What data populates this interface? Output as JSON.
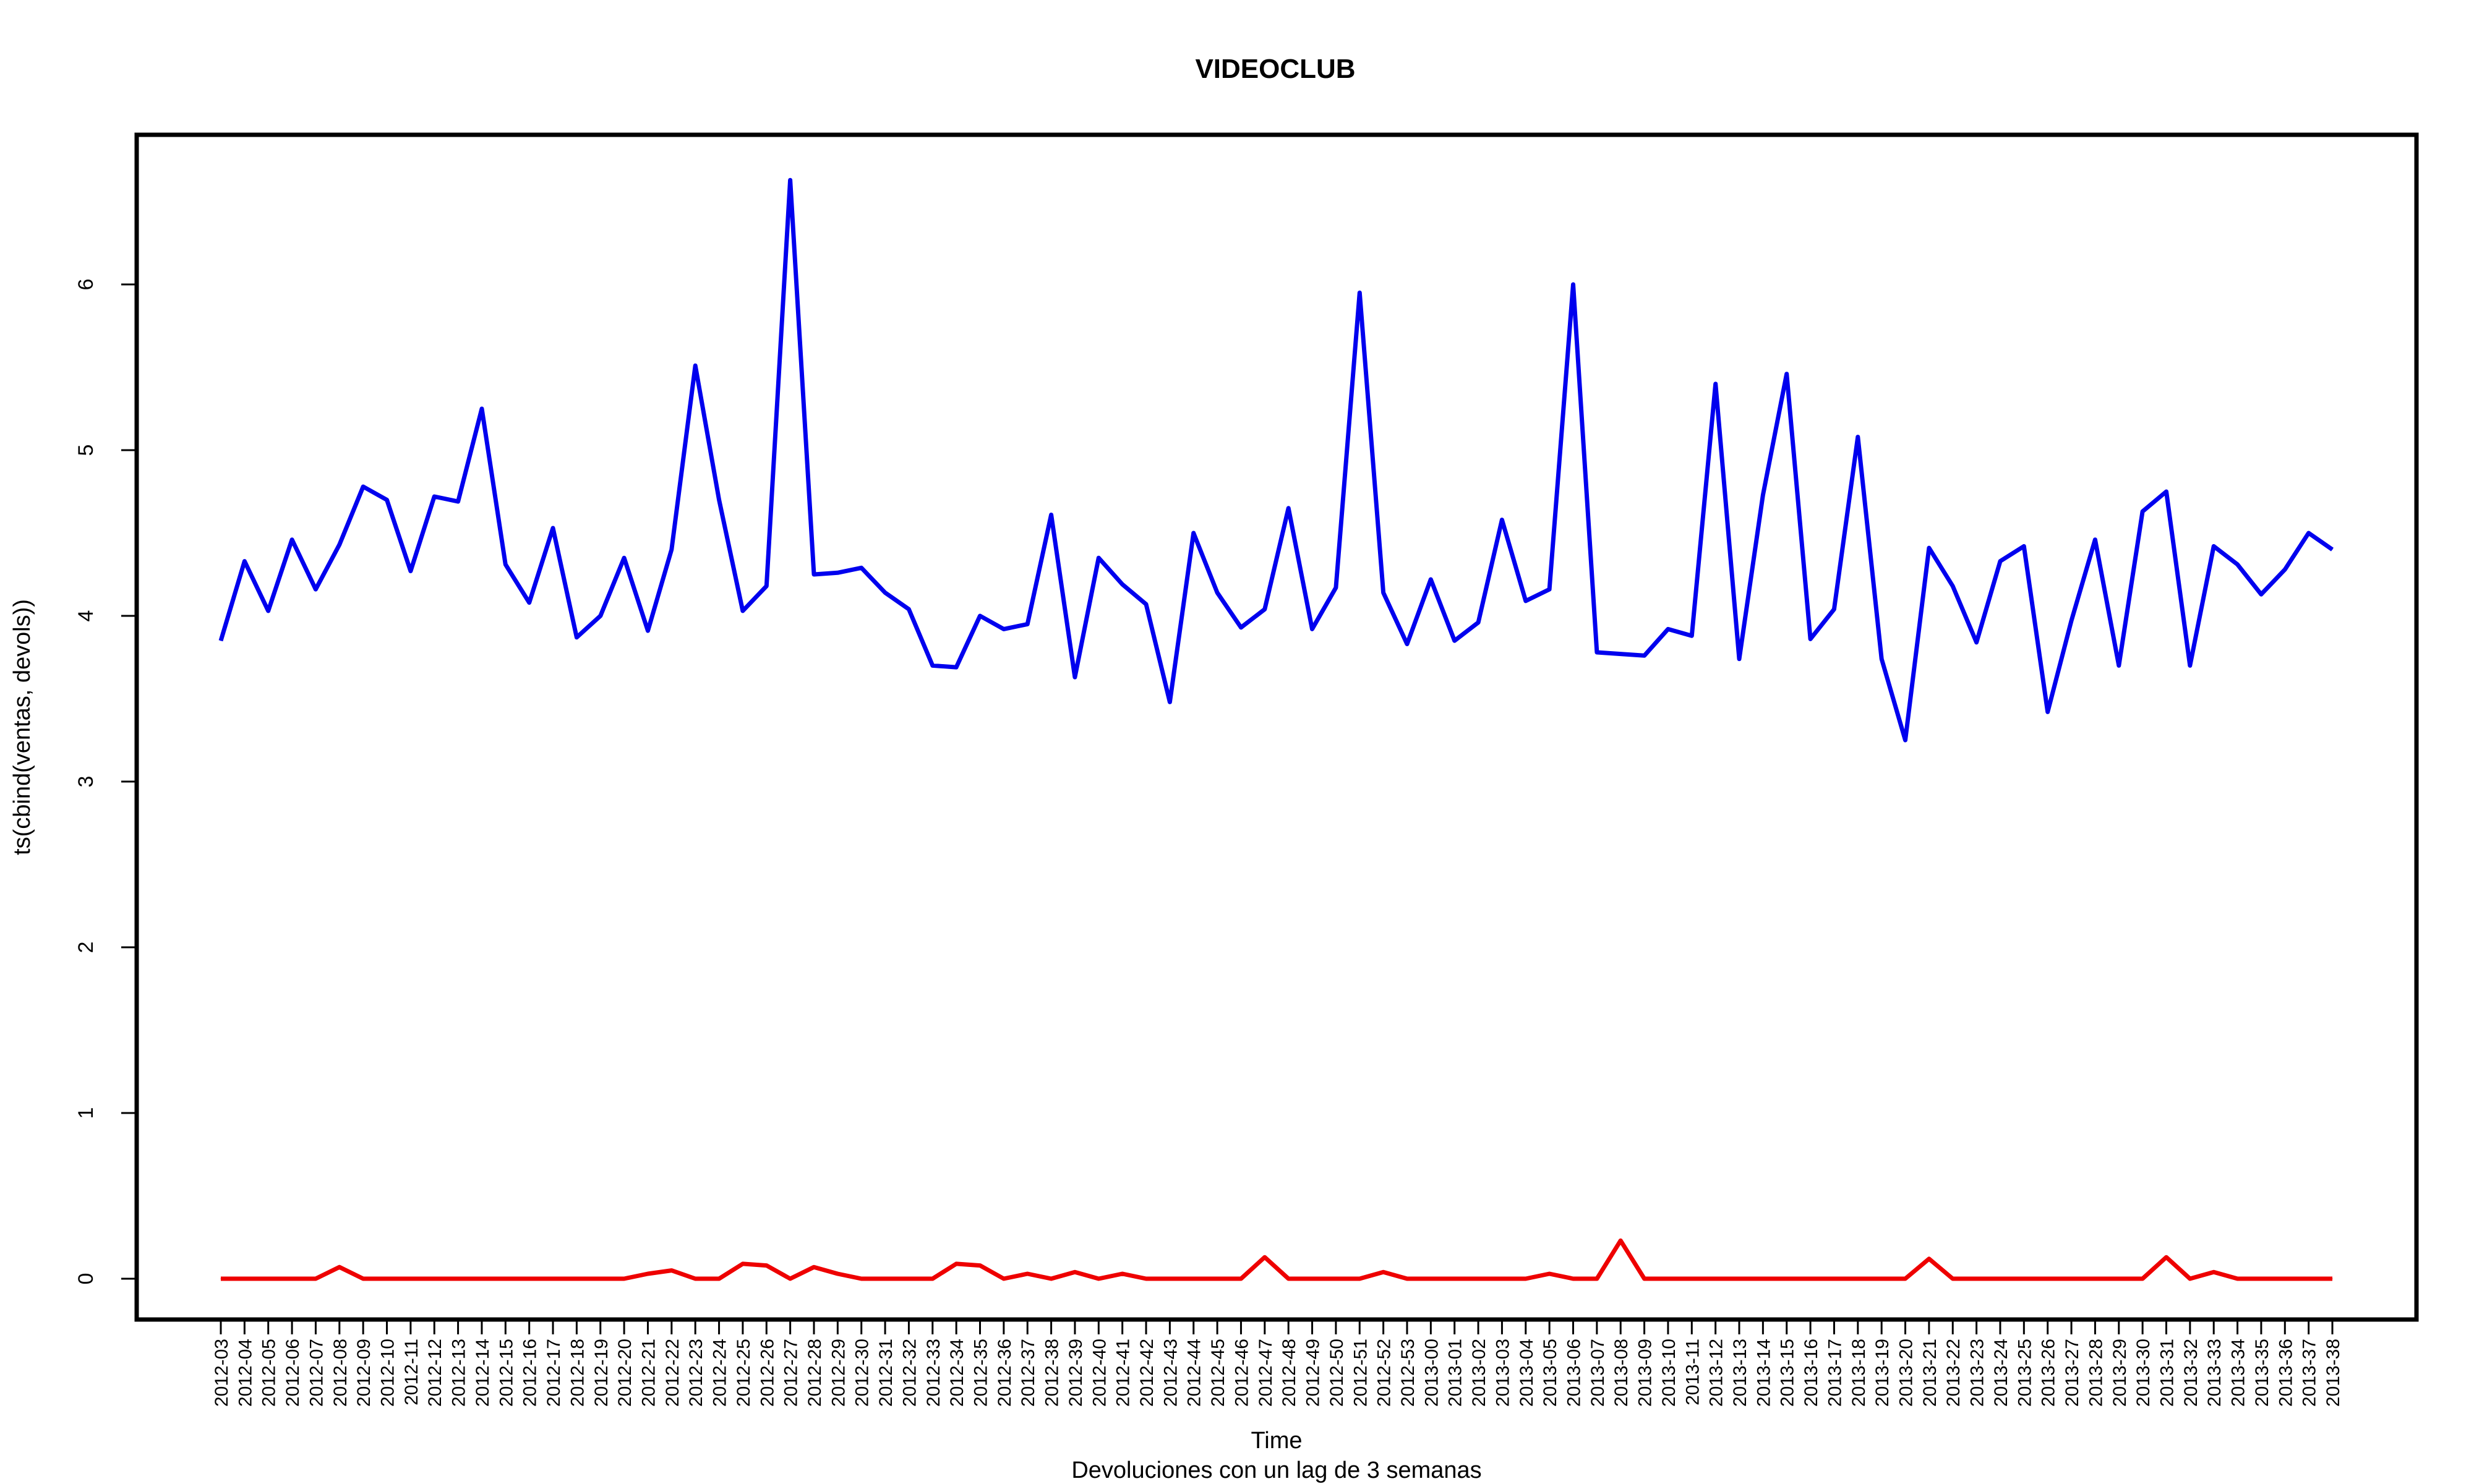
{
  "chart_data": {
    "type": "line",
    "title": "VIDEOCLUB",
    "xlabel": "Time",
    "ylabel": "ts(cbind(ventas, devols))",
    "subtitle": "Devoluciones con un lag de 3 semanas",
    "ylim": [
      -0.25,
      6.9
    ],
    "yticks": [
      0,
      1,
      2,
      3,
      4,
      5,
      6
    ],
    "grid": false,
    "categories": [
      "2012-03",
      "2012-04",
      "2012-05",
      "2012-06",
      "2012-07",
      "2012-08",
      "2012-09",
      "2012-10",
      "2012-11",
      "2012-12",
      "2012-13",
      "2012-14",
      "2012-15",
      "2012-16",
      "2012-17",
      "2012-18",
      "2012-19",
      "2012-20",
      "2012-21",
      "2012-22",
      "2012-23",
      "2012-24",
      "2012-25",
      "2012-26",
      "2012-27",
      "2012-28",
      "2012-29",
      "2012-30",
      "2012-31",
      "2012-32",
      "2012-33",
      "2012-34",
      "2012-35",
      "2012-36",
      "2012-37",
      "2012-38",
      "2012-39",
      "2012-40",
      "2012-41",
      "2012-42",
      "2012-43",
      "2012-44",
      "2012-45",
      "2012-46",
      "2012-47",
      "2012-48",
      "2012-49",
      "2012-50",
      "2012-51",
      "2012-52",
      "2012-53",
      "2013-00",
      "2013-01",
      "2013-02",
      "2013-03",
      "2013-04",
      "2013-05",
      "2013-06",
      "2013-07",
      "2013-08",
      "2013-09",
      "2013-10",
      "2013-11",
      "2013-12",
      "2013-13",
      "2013-14",
      "2013-15",
      "2013-16",
      "2013-17",
      "2013-18",
      "2013-19",
      "2013-20",
      "2013-21",
      "2013-22",
      "2013-23",
      "2013-24",
      "2013-25",
      "2013-26",
      "2013-27",
      "2013-28",
      "2013-29",
      "2013-30",
      "2013-31",
      "2013-32",
      "2013-33",
      "2013-34",
      "2013-35",
      "2013-36",
      "2013-37",
      "2013-38"
    ],
    "series": [
      {
        "color": "#0000ee",
        "values": [
          3.85,
          4.33,
          4.03,
          4.46,
          4.16,
          4.43,
          4.78,
          4.7,
          4.27,
          4.72,
          4.69,
          5.25,
          4.31,
          4.08,
          4.53,
          3.87,
          4.0,
          4.35,
          3.91,
          4.4,
          5.51,
          4.7,
          4.03,
          4.18,
          6.63,
          4.25,
          4.26,
          4.29,
          4.14,
          4.04,
          3.7,
          3.69,
          4.0,
          3.92,
          3.95,
          4.61,
          3.63,
          4.35,
          4.19,
          4.07,
          3.48,
          4.5,
          4.14,
          3.93,
          4.04,
          4.65,
          3.92,
          4.17,
          5.95,
          4.14,
          3.83,
          4.22,
          3.85,
          3.96,
          4.58,
          4.09,
          4.16,
          6.0,
          3.78,
          3.77,
          3.76,
          3.92,
          3.88,
          5.4,
          3.74,
          4.73,
          5.46,
          3.86,
          4.04,
          5.08,
          3.74,
          3.25,
          4.41,
          4.18,
          3.84,
          4.33,
          4.42,
          3.42,
          3.97,
          4.46,
          3.7,
          4.63,
          4.75,
          3.7,
          4.42,
          4.31,
          4.13,
          4.28,
          4.5,
          4.4
        ]
      },
      {
        "color": "#ee0000",
        "values": [
          0,
          0,
          0,
          0,
          0,
          0.07,
          0,
          0,
          0,
          0,
          0,
          0,
          0,
          0,
          0,
          0,
          0,
          0,
          0.03,
          0.05,
          0,
          0,
          0.09,
          0.08,
          0,
          0.07,
          0.03,
          0,
          0,
          0,
          0,
          0.09,
          0.08,
          0,
          0.03,
          0,
          0.04,
          0,
          0.03,
          0,
          0,
          0,
          0,
          0,
          0.13,
          0,
          0,
          0,
          0,
          0.04,
          0,
          0,
          0,
          0,
          0,
          0,
          0.03,
          0,
          0,
          0.23,
          0,
          0,
          0,
          0,
          0,
          0,
          0,
          0,
          0,
          0,
          0,
          0,
          0.12,
          0,
          0,
          0,
          0,
          0,
          0,
          0,
          0,
          0,
          0.13,
          0,
          0.04,
          0,
          0,
          0,
          0,
          0
        ]
      }
    ]
  }
}
